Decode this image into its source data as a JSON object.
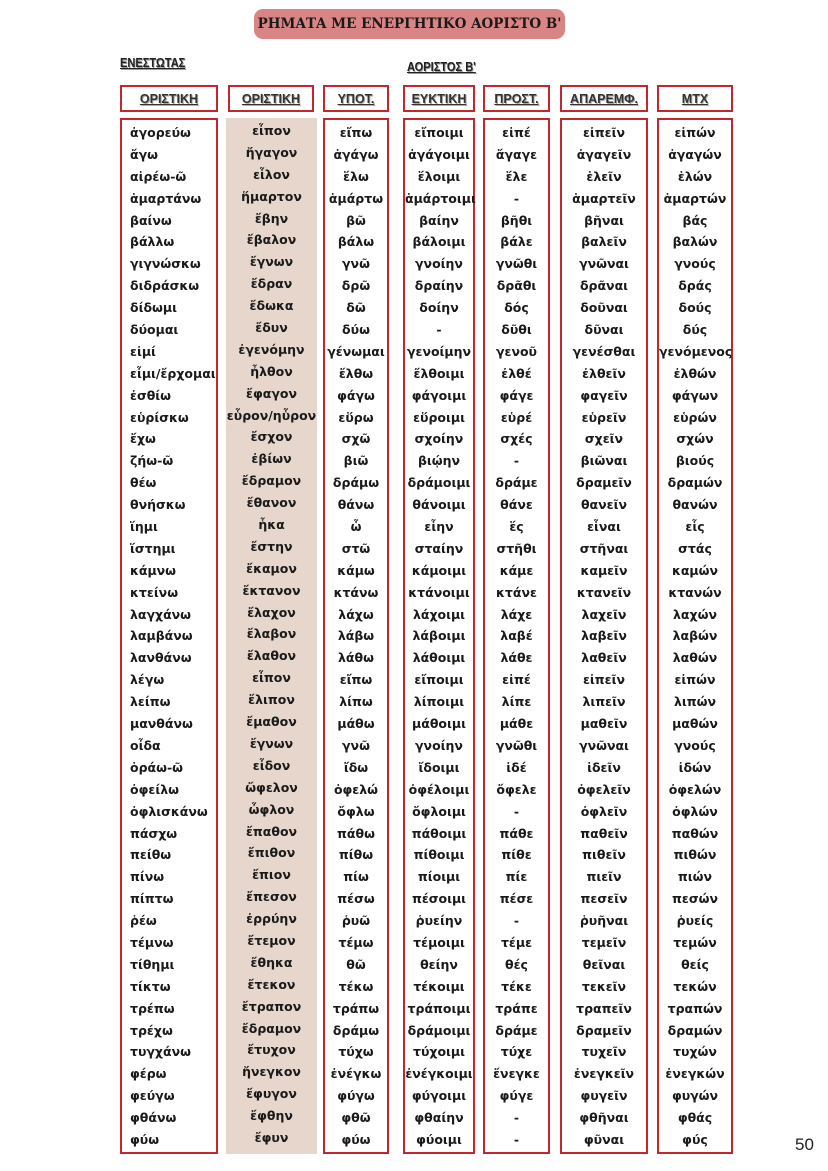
{
  "title": "ΡΗΜΑΤΑ ΜΕ ΕΝΕΡΓΗΤΙΚΟ ΑΟΡΙΣΤΟ Β'",
  "section_present": "ΕΝΕΣΤΩΤΑΣ",
  "section_aorist": "ΑΟΡΙΣΤΟΣ Β'",
  "headers": [
    "ΟΡΙΣΤΙΚΗ",
    "ΟΡΙΣΤΙΚΗ",
    "ΥΠΟΤ.",
    "ΕΥΚΤΙΚΗ",
    "ΠΡΟΣΤ.",
    "ΑΠΑΡΕΜΦ.",
    "ΜΤΧ"
  ],
  "colors": {
    "border": "#c1272d",
    "title_bg": "#d98585",
    "shaded_column": "#e6d6cc"
  },
  "table": {
    "rows": [
      [
        "ἀγορεύω",
        "εἶπον",
        "εἴπω",
        "εἴποιμι",
        "εἰπέ",
        "εἰπεῖν",
        "εἰπών"
      ],
      [
        "ἄγω",
        "ἤγαγον",
        "ἀγάγω",
        "ἀγάγοιμι",
        "ἄγαγε",
        "ἀγαγεῖν",
        "ἀγαγών"
      ],
      [
        "αἱρέω-ῶ",
        "εἷλον",
        "ἕλω",
        "ἕλοιμι",
        "ἕλε",
        "ἑλεῖν",
        "ἑλών"
      ],
      [
        "ἁμαρτάνω",
        "ἥμαρτον",
        "ἁμάρτω",
        "ἁμάρτοιμι",
        "-",
        "ἁμαρτεῖν",
        "ἁμαρτών"
      ],
      [
        "βαίνω",
        "ἔβην",
        "βῶ",
        "βαίην",
        "βῆθι",
        "βῆναι",
        "βάς"
      ],
      [
        "βάλλω",
        "ἔβαλον",
        "βάλω",
        "βάλοιμι",
        "βάλε",
        "βαλεῖν",
        "βαλών"
      ],
      [
        "γιγνώσκω",
        "ἔγνων",
        "γνῶ",
        "γνοίην",
        "γνῶθι",
        "γνῶναι",
        "γνούς"
      ],
      [
        "διδράσκω",
        "ἔδραν",
        "δρῶ",
        "δραίην",
        "δρᾶθι",
        "δρᾶναι",
        "δράς"
      ],
      [
        "δίδωμι",
        "ἔδωκα",
        "δῶ",
        "δοίην",
        "δός",
        "δοῦναι",
        "δούς"
      ],
      [
        "δύομαι",
        "ἔδυν",
        "δύω",
        "-",
        "δῦθι",
        "δῦναι",
        "δύς"
      ],
      [
        "εἰμί",
        "ἐγενόμην",
        "γένωμαι",
        "γενοίμην",
        "γενοῦ",
        "γενέσθαι",
        "γενόμενος"
      ],
      [
        "εἶμι/ἔρχομαι",
        "ἦλθον",
        "ἔλθω",
        "ἔλθοιμι",
        "ἐλθέ",
        "ἐλθεῖν",
        "ἐλθών"
      ],
      [
        "ἐσθίω",
        "ἔφαγον",
        "φάγω",
        "φάγοιμι",
        "φάγε",
        "φαγεῖν",
        "φάγων"
      ],
      [
        "εὑρίσκω",
        "εὗρον/ηὗρον",
        "εὕρω",
        "εὕροιμι",
        "εὑρέ",
        "εὑρεῖν",
        "εὑρών"
      ],
      [
        "ἔχω",
        "ἔσχον",
        "σχῶ",
        "σχοίην",
        "σχές",
        "σχεῖν",
        "σχών"
      ],
      [
        "ζήω-ῶ",
        "ἐβίων",
        "βιῶ",
        "βιῴην",
        "-",
        "βιῶναι",
        "βιούς"
      ],
      [
        "θέω",
        "ἔδραμον",
        "δράμω",
        "δράμοιμι",
        "δράμε",
        "δραμεῖν",
        "δραμών"
      ],
      [
        "θνήσκω",
        "ἔθανον",
        "θάνω",
        "θάνοιμι",
        "θάνε",
        "θανεῖν",
        "θανών"
      ],
      [
        "ἵημι",
        "ἧκα",
        "ὧ",
        "εἷην",
        "ἕς",
        "εἷναι",
        "εἷς"
      ],
      [
        "ἵστημι",
        "ἔστην",
        "στῶ",
        "σταίην",
        "στῆθι",
        "στῆναι",
        "στάς"
      ],
      [
        "κάμνω",
        "ἔκαμον",
        "κάμω",
        "κάμοιμι",
        "κάμε",
        "καμεῖν",
        "καμών"
      ],
      [
        "κτείνω",
        "ἔκτανον",
        "κτάνω",
        "κτάνοιμι",
        "κτάνε",
        "κτανεῖν",
        "κτανών"
      ],
      [
        "λαγχάνω",
        "ἔλαχον",
        "λάχω",
        "λάχοιμι",
        "λάχε",
        "λαχεῖν",
        "λαχών"
      ],
      [
        "λαμβάνω",
        "ἔλαβον",
        "λάβω",
        "λάβοιμι",
        "λαβέ",
        "λαβεῖν",
        "λαβών"
      ],
      [
        "λανθάνω",
        "ἔλαθον",
        "λάθω",
        "λάθοιμι",
        "λάθε",
        "λαθεῖν",
        "λαθών"
      ],
      [
        "λέγω",
        "εἶπον",
        "εἴπω",
        "εἴποιμι",
        "εἰπέ",
        "εἰπεῖν",
        "εἰπών"
      ],
      [
        "λείπω",
        "ἔλιπον",
        "λίπω",
        "λίποιμι",
        "λίπε",
        "λιπεῖν",
        "λιπών"
      ],
      [
        "μανθάνω",
        "ἔμαθον",
        "μάθω",
        "μάθοιμι",
        "μάθε",
        "μαθεῖν",
        "μαθών"
      ],
      [
        "οἶδα",
        "ἔγνων",
        "γνῶ",
        "γνοίην",
        "γνῶθι",
        "γνῶναι",
        "γνούς"
      ],
      [
        "ὁράω-ῶ",
        "εἶδον",
        "ἴδω",
        "ἴδοιμι",
        "ἰδέ",
        "ἰδεῖν",
        "ἰδών"
      ],
      [
        "ὀφείλω",
        "ὤφελον",
        "ὀφελώ",
        "ὀφέλοιμι",
        "ὄφελε",
        "ὀφελεῖν",
        "ὀφελών"
      ],
      [
        "ὀφλισκάνω",
        "ὦφλον",
        "ὄφλω",
        "ὄφλοιμι",
        "-",
        "ὀφλεῖν",
        "ὀφλών"
      ],
      [
        "πάσχω",
        "ἔπαθον",
        "πάθω",
        "πάθοιμι",
        "πάθε",
        "παθεῖν",
        "παθών"
      ],
      [
        "πείθω",
        "ἔπιθον",
        "πίθω",
        "πίθοιμι",
        "πίθε",
        "πιθεῖν",
        "πιθών"
      ],
      [
        "πίνω",
        "ἔπιον",
        "πίω",
        "πίοιμι",
        "πίε",
        "πιεῖν",
        "πιών"
      ],
      [
        "πίπτω",
        "ἔπεσον",
        "πέσω",
        "πέσοιμι",
        "πέσε",
        "πεσεῖν",
        "πεσών"
      ],
      [
        "ῥέω",
        "ἐρρύην",
        "ῥυῶ",
        "ῥυείην",
        "-",
        "ῥυῆναι",
        "ῥυείς"
      ],
      [
        "τέμνω",
        "ἔτεμον",
        "τέμω",
        "τέμοιμι",
        "τέμε",
        "τεμεῖν",
        "τεμών"
      ],
      [
        "τίθημι",
        "ἔθηκα",
        "θῶ",
        "θείην",
        "θές",
        "θεῖναι",
        "θείς"
      ],
      [
        "τίκτω",
        "ἔτεκον",
        "τέκω",
        "τέκοιμι",
        "τέκε",
        "τεκεῖν",
        "τεκών"
      ],
      [
        "τρέπω",
        "ἔτραπον",
        "τράπω",
        "τράποιμι",
        "τράπε",
        "τραπεῖν",
        "τραπών"
      ],
      [
        "τρέχω",
        "ἔδραμον",
        "δράμω",
        "δράμοιμι",
        "δράμε",
        "δραμεῖν",
        "δραμών"
      ],
      [
        "τυγχάνω",
        "ἔτυχον",
        "τύχω",
        "τύχοιμι",
        "τύχε",
        "τυχεῖν",
        "τυχών"
      ],
      [
        "φέρω",
        "ἤνεγκον",
        "ἐνέγκω",
        "ἐνέγκοιμι",
        "ἔνεγκε",
        "ἐνεγκεῖν",
        "ἐνεγκών"
      ],
      [
        "φεύγω",
        "ἔφυγον",
        "φύγω",
        "φύγοιμι",
        "φύγε",
        "φυγεῖν",
        "φυγών"
      ],
      [
        "φθάνω",
        "ἔφθην",
        "φθῶ",
        "φθαίην",
        "-",
        "φθῆναι",
        "φθάς"
      ],
      [
        "φύω",
        "ἔφυν",
        "φύω",
        "φύοιμι",
        "-",
        "φῦναι",
        "φύς"
      ]
    ]
  },
  "page_number": "50"
}
